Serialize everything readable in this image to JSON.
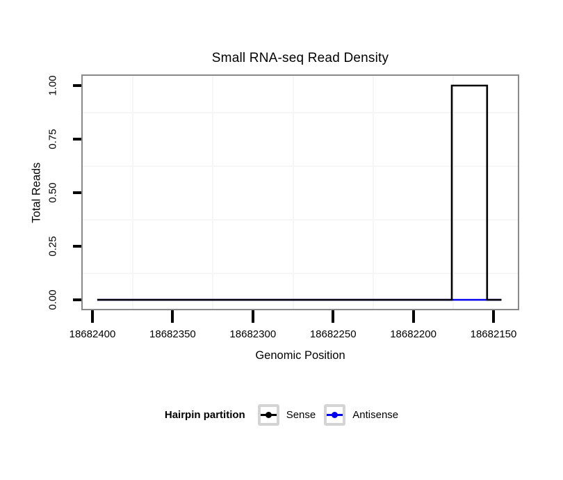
{
  "title": "Small RNA-seq Read Density",
  "x_axis": {
    "label": "Genomic Position",
    "ticks": [
      "18682400",
      "18682350",
      "18682300",
      "18682250",
      "18682200",
      "18682150"
    ],
    "tick_values": [
      18682400,
      18682350,
      18682300,
      18682250,
      18682200,
      18682150
    ],
    "reversed": true
  },
  "y_axis": {
    "label": "Total Reads",
    "ticks": [
      "0.00",
      "0.25",
      "0.50",
      "0.75",
      "1.00"
    ],
    "tick_values": [
      0,
      0.25,
      0.5,
      0.75,
      1
    ]
  },
  "legend": {
    "title": "Hairpin partition",
    "items": [
      {
        "label": "Sense",
        "color": "#000000"
      },
      {
        "label": "Antisense",
        "color": "#0000ee"
      }
    ]
  },
  "colors": {
    "sense": "#000000",
    "antisense": "#0000ee",
    "panel_border": "#898989",
    "grid_minor": "#f6f6f6",
    "tick": "#000000",
    "legend_key_border": "#d4d4d4"
  },
  "chart_data": {
    "type": "line",
    "title": "Small RNA-seq Read Density",
    "xlabel": "Genomic Position",
    "ylabel": "Total Reads",
    "x_reversed": true,
    "x_display_ticks": [
      18682400,
      18682350,
      18682300,
      18682250,
      18682200,
      18682150
    ],
    "ylim": [
      0,
      1
    ],
    "y_ticks": [
      0,
      0.25,
      0.5,
      0.75,
      1
    ],
    "grid": "minor-gridlines-only",
    "legend_position": "bottom",
    "legend_title": "Hairpin partition",
    "series": [
      {
        "name": "Sense",
        "color": "#000000",
        "description": "step line; 1 read covering ~18682154-18682176, 0 elsewhere",
        "points": [
          [
            18682397,
            0
          ],
          [
            18682176,
            0
          ],
          [
            18682176,
            1
          ],
          [
            18682154,
            1
          ],
          [
            18682154,
            0
          ],
          [
            18682145,
            0
          ]
        ]
      },
      {
        "name": "Antisense",
        "color": "#0000ee",
        "description": "flat at 0 across region (visible beneath sense peak)",
        "points": [
          [
            18682397,
            0
          ],
          [
            18682145,
            0
          ]
        ]
      }
    ]
  }
}
